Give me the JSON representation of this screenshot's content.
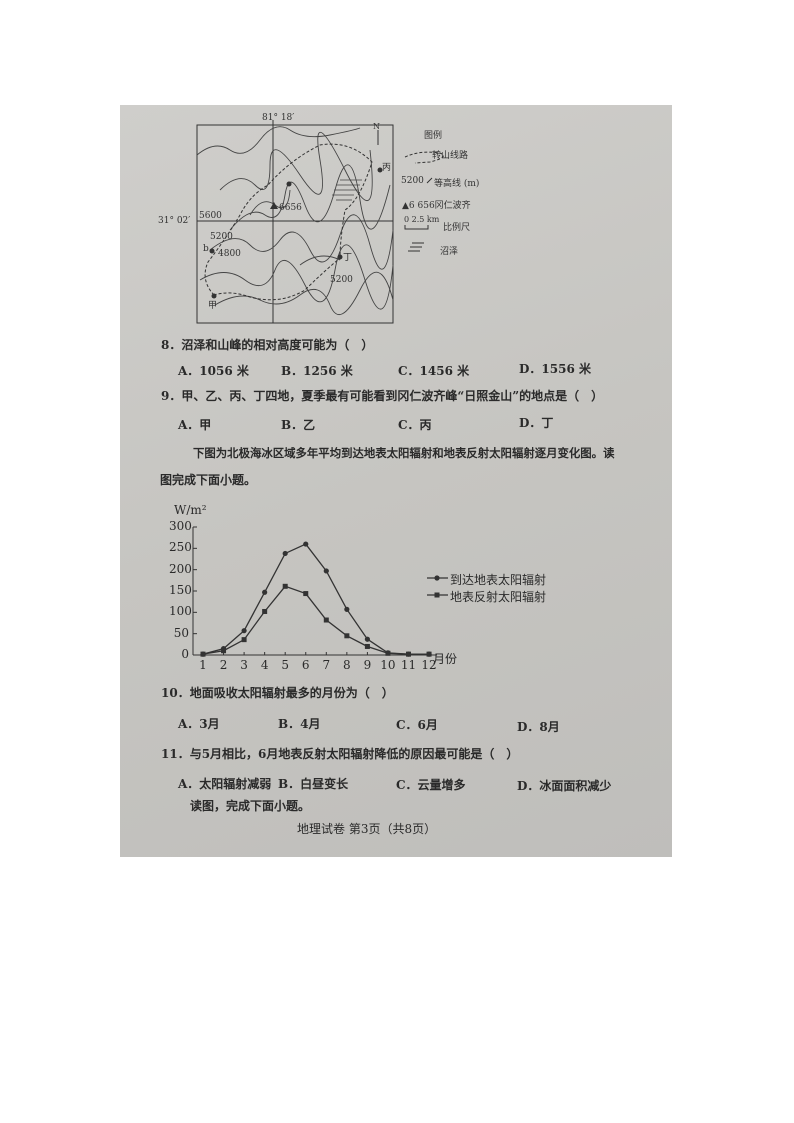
{
  "map": {
    "longitude": "81° 18′",
    "latitude": "31° 02′",
    "north": "N",
    "contours": [
      "5600",
      "5200",
      "4800",
      "5200"
    ],
    "peak_label": "6656",
    "places": {
      "jia": "甲",
      "yi": "b",
      "bing": "丙",
      "ding": "丁"
    },
    "legend": {
      "title": "图例",
      "route": "转山线路",
      "contour": "5200",
      "contour_label": "等高线 (m)",
      "peak": "▲6 656冈仁波齐",
      "scale_nums": "0   2.5 km",
      "scale": "比例尺",
      "marsh": "沼泽"
    }
  },
  "questions": [
    {
      "stem": "8．沼泽和山峰的相对高度可能为（　）",
      "options": [
        "A．1056 米",
        "B．1256 米",
        "C．1456 米",
        "D．1556 米"
      ]
    },
    {
      "stem": "9．甲、乙、丙、丁四地，夏季最有可能看到冈仁波齐峰“日照金山”的地点是（　）",
      "options": [
        "A．甲",
        "B．乙",
        "C．丙",
        "D．丁"
      ]
    },
    {
      "stem": "10．地面吸收太阳辐射最多的月份为（　）",
      "options": [
        "A．3月",
        "B．4月",
        "C．6月",
        "D．8月"
      ]
    },
    {
      "stem": "11．与5月相比，6月地表反射太阳辐射降低的原因最可能是（　）",
      "options": [
        "A．太阳辐射减弱",
        "B．白昼变长",
        "C．云量增多",
        "D．冰面面积减少"
      ]
    }
  ],
  "intro": {
    "line1": "下图为北极海冰区域多年平均到达地表太阳辐射和地表反射太阳辐射逐月变化图。读",
    "line2": "图完成下面小题。"
  },
  "read_prompt": "读图，完成下面小题。",
  "footer": "地理试卷 第3页（共8页）",
  "chart_data": {
    "type": "line",
    "ylabel": "W/m²",
    "xlabel": "月份",
    "ylim": [
      0,
      300
    ],
    "yticks": [
      "0",
      "50",
      "100",
      "150",
      "200",
      "250",
      "300"
    ],
    "categories": [
      "1",
      "2",
      "3",
      "4",
      "5",
      "6",
      "7",
      "8",
      "9",
      "10",
      "11",
      "12"
    ],
    "series": [
      {
        "name": "到达地表太阳辐射",
        "marker": "circle",
        "values": [
          2,
          15,
          57,
          147,
          238,
          260,
          197,
          107,
          37,
          5,
          2,
          2
        ]
      },
      {
        "name": "地表反射太阳辐射",
        "marker": "square",
        "values": [
          2,
          10,
          36,
          102,
          161,
          144,
          82,
          45,
          20,
          4,
          2,
          2
        ]
      }
    ],
    "legend": "right",
    "grid": false
  }
}
